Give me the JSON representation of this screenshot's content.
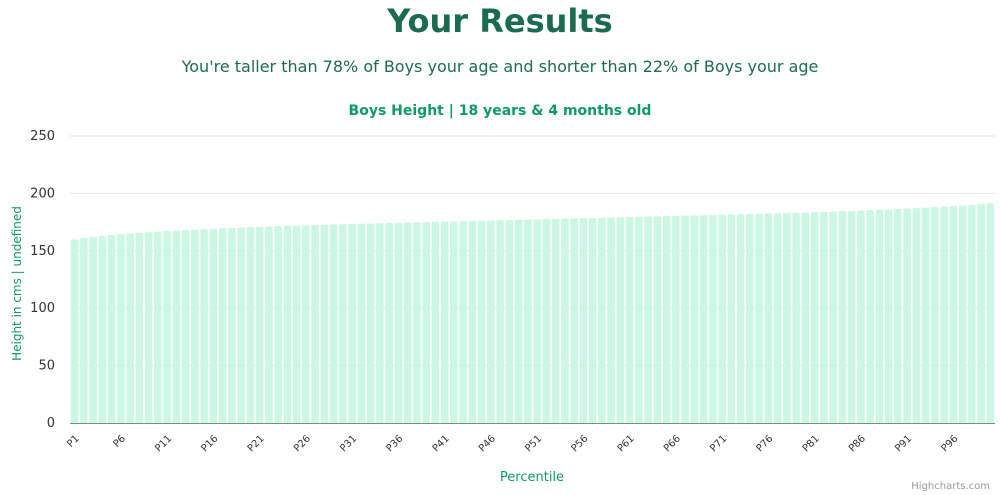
{
  "page": {
    "title": "Your Results",
    "subtitle": "You're taller than 78% of Boys your age and shorter than 22% of Boys your age"
  },
  "credits": "Highcharts.com",
  "colors": {
    "heading": "#1a6b52",
    "accent": "#0e9a67",
    "bar_fill": "#ccf7e4",
    "grid": "#e6e6e6",
    "axis_line": "#7f8c85",
    "tick_text": "#333333",
    "credit_text": "#999999"
  },
  "chart_data": {
    "type": "bar",
    "title": "Boys Height | 18 years & 4 months old",
    "xlabel": "Percentile",
    "ylabel": "Height in cms | undefined",
    "ylim": [
      0,
      250
    ],
    "yticks": [
      0,
      50,
      100,
      150,
      200,
      250
    ],
    "grid": true,
    "categories": [
      "P1",
      "P2",
      "P3",
      "P4",
      "P5",
      "P6",
      "P7",
      "P8",
      "P9",
      "P10",
      "P11",
      "P12",
      "P13",
      "P14",
      "P15",
      "P16",
      "P17",
      "P18",
      "P19",
      "P20",
      "P21",
      "P22",
      "P23",
      "P24",
      "P25",
      "P26",
      "P27",
      "P28",
      "P29",
      "P30",
      "P31",
      "P32",
      "P33",
      "P34",
      "P35",
      "P36",
      "P37",
      "P38",
      "P39",
      "P40",
      "P41",
      "P42",
      "P43",
      "P44",
      "P45",
      "P46",
      "P47",
      "P48",
      "P49",
      "P50",
      "P51",
      "P52",
      "P53",
      "P54",
      "P55",
      "P56",
      "P57",
      "P58",
      "P59",
      "P60",
      "P61",
      "P62",
      "P63",
      "P64",
      "P65",
      "P66",
      "P67",
      "P68",
      "P69",
      "P70",
      "P71",
      "P72",
      "P73",
      "P74",
      "P75",
      "P76",
      "P77",
      "P78",
      "P79",
      "P80",
      "P81",
      "P82",
      "P83",
      "P84",
      "P85",
      "P86",
      "P87",
      "P88",
      "P89",
      "P90",
      "P91",
      "P92",
      "P93",
      "P94",
      "P95",
      "P96",
      "P97",
      "P98",
      "P99",
      "P100"
    ],
    "visible_tick_labels": [
      "P1",
      "P6",
      "P11",
      "P16",
      "P21",
      "P26",
      "P31",
      "P36",
      "P41",
      "P46",
      "P51",
      "P56",
      "P61",
      "P66",
      "P71",
      "P76",
      "P81",
      "P86",
      "P91",
      "P96"
    ],
    "values": [
      160.0,
      161.1,
      162.1,
      163.0,
      163.8,
      164.5,
      165.1,
      165.7,
      166.2,
      166.7,
      167.2,
      167.6,
      168.0,
      168.4,
      168.8,
      169.2,
      169.6,
      169.9,
      170.2,
      170.5,
      170.8,
      171.1,
      171.4,
      171.7,
      171.9,
      172.2,
      172.4,
      172.7,
      172.9,
      173.2,
      173.4,
      173.6,
      173.8,
      174.0,
      174.2,
      174.4,
      174.6,
      174.8,
      175.0,
      175.2,
      175.4,
      175.6,
      175.8,
      176.0,
      176.2,
      176.4,
      176.6,
      176.8,
      177.0,
      177.2,
      177.4,
      177.6,
      177.8,
      178.0,
      178.2,
      178.4,
      178.6,
      178.8,
      179.0,
      179.2,
      179.4,
      179.6,
      179.8,
      180.0,
      180.2,
      180.4,
      180.6,
      180.8,
      181.0,
      181.2,
      181.4,
      181.6,
      181.8,
      182.0,
      182.2,
      182.5,
      182.7,
      182.9,
      183.1,
      183.4,
      183.6,
      183.9,
      184.2,
      184.4,
      184.7,
      185.0,
      185.3,
      185.6,
      186.0,
      186.4,
      186.8,
      187.2,
      187.6,
      188.0,
      188.5,
      189.0,
      189.5,
      190.0,
      190.6,
      191.3
    ]
  }
}
